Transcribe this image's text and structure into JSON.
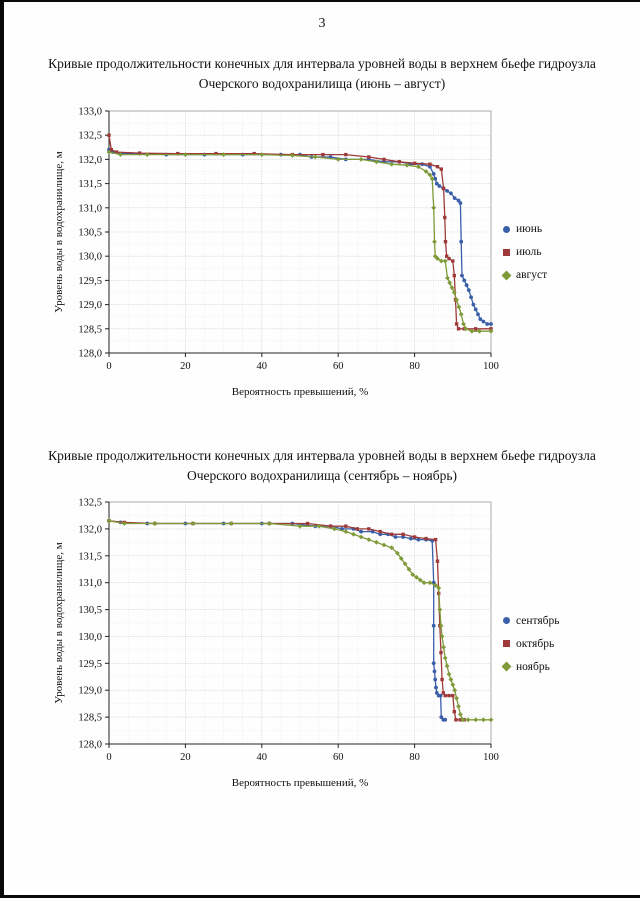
{
  "document": {
    "page_number": "3"
  },
  "chart_data": [
    {
      "type": "line",
      "title": "Кривые продолжительности конечных для интервала уровней воды в верхнем бьефе гидроузла Очерского водохранилища (июнь – август)",
      "xlabel": "Вероятность превышений, %",
      "ylabel": "Уровень воды в водохранилище, м",
      "xlim": [
        0,
        100
      ],
      "ylim": [
        128.0,
        133.0
      ],
      "xticks": [
        0,
        20,
        40,
        60,
        80,
        100
      ],
      "ytick_step": 0.5,
      "grid": true,
      "legend_position": "right",
      "series": [
        {
          "name": "июнь",
          "color": "#3a5fa8",
          "marker": "circle",
          "points": [
            [
              0,
              132.2
            ],
            [
              1,
              132.15
            ],
            [
              3,
              132.12
            ],
            [
              8,
              132.12
            ],
            [
              15,
              132.1
            ],
            [
              25,
              132.1
            ],
            [
              35,
              132.1
            ],
            [
              45,
              132.1
            ],
            [
              50,
              132.1
            ],
            [
              53,
              132.05
            ],
            [
              58,
              132.05
            ],
            [
              62,
              132.0
            ],
            [
              68,
              132.0
            ],
            [
              72,
              131.95
            ],
            [
              76,
              131.95
            ],
            [
              79,
              131.9
            ],
            [
              82,
              131.9
            ],
            [
              84,
              131.85
            ],
            [
              85,
              131.7
            ],
            [
              85.4,
              131.6
            ],
            [
              85.8,
              131.5
            ],
            [
              86.5,
              131.45
            ],
            [
              87.5,
              131.4
            ],
            [
              88.5,
              131.35
            ],
            [
              89.5,
              131.3
            ],
            [
              90.5,
              131.2
            ],
            [
              91.5,
              131.15
            ],
            [
              92,
              131.1
            ],
            [
              92.2,
              130.3
            ],
            [
              92.4,
              129.6
            ],
            [
              93,
              129.5
            ],
            [
              93.6,
              129.4
            ],
            [
              94.2,
              129.3
            ],
            [
              94.8,
              129.15
            ],
            [
              95.4,
              129.0
            ],
            [
              96,
              128.9
            ],
            [
              96.6,
              128.8
            ],
            [
              97.2,
              128.7
            ],
            [
              98,
              128.65
            ],
            [
              99,
              128.6
            ],
            [
              100,
              128.6
            ]
          ]
        },
        {
          "name": "июль",
          "color": "#9e3a3a",
          "marker": "square",
          "points": [
            [
              0,
              132.5
            ],
            [
              0.6,
              132.2
            ],
            [
              2,
              132.15
            ],
            [
              8,
              132.13
            ],
            [
              18,
              132.12
            ],
            [
              28,
              132.12
            ],
            [
              38,
              132.12
            ],
            [
              48,
              132.1
            ],
            [
              56,
              132.1
            ],
            [
              62,
              132.1
            ],
            [
              68,
              132.05
            ],
            [
              72,
              132.0
            ],
            [
              76,
              131.95
            ],
            [
              80,
              131.92
            ],
            [
              84,
              131.9
            ],
            [
              86,
              131.85
            ],
            [
              87,
              131.8
            ],
            [
              87.6,
              131.4
            ],
            [
              87.9,
              130.8
            ],
            [
              88.1,
              130.3
            ],
            [
              88.4,
              130.0
            ],
            [
              89,
              129.95
            ],
            [
              90,
              129.9
            ],
            [
              90.4,
              129.6
            ],
            [
              90.7,
              129.1
            ],
            [
              91,
              128.6
            ],
            [
              91.5,
              128.5
            ],
            [
              93,
              128.5
            ],
            [
              96,
              128.5
            ],
            [
              100,
              128.5
            ]
          ]
        },
        {
          "name": "август",
          "color": "#7f9a38",
          "marker": "diamond",
          "points": [
            [
              0,
              132.15
            ],
            [
              3,
              132.1
            ],
            [
              10,
              132.1
            ],
            [
              20,
              132.1
            ],
            [
              30,
              132.1
            ],
            [
              40,
              132.1
            ],
            [
              48,
              132.08
            ],
            [
              54,
              132.05
            ],
            [
              60,
              132.0
            ],
            [
              66,
              132.0
            ],
            [
              70,
              131.95
            ],
            [
              74,
              131.9
            ],
            [
              78,
              131.88
            ],
            [
              81,
              131.85
            ],
            [
              83,
              131.75
            ],
            [
              84,
              131.68
            ],
            [
              84.6,
              131.6
            ],
            [
              85,
              131.0
            ],
            [
              85.2,
              130.3
            ],
            [
              85.4,
              130.0
            ],
            [
              86,
              129.95
            ],
            [
              87,
              129.9
            ],
            [
              88,
              129.9
            ],
            [
              88.6,
              129.55
            ],
            [
              89.2,
              129.45
            ],
            [
              89.8,
              129.35
            ],
            [
              90.4,
              129.25
            ],
            [
              91,
              129.1
            ],
            [
              91.6,
              128.95
            ],
            [
              92.2,
              128.8
            ],
            [
              92.8,
              128.6
            ],
            [
              93.4,
              128.5
            ],
            [
              95,
              128.45
            ],
            [
              97,
              128.45
            ],
            [
              100,
              128.45
            ]
          ]
        }
      ]
    },
    {
      "type": "line",
      "title": "Кривые продолжительности конечных для интервала уровней воды в верхнем бьефе гидроузла Очерского водохранилища (сентябрь – ноябрь)",
      "xlabel": "Вероятность превышений, %",
      "ylabel": "Уровень воды в водохранилище, м",
      "xlim": [
        0,
        100
      ],
      "ylim": [
        128.0,
        132.5
      ],
      "xticks": [
        0,
        20,
        40,
        60,
        80,
        100
      ],
      "ytick_step": 0.5,
      "grid": true,
      "legend_position": "right",
      "series": [
        {
          "name": "сентябрь",
          "color": "#3a5fa8",
          "marker": "circle",
          "points": [
            [
              0,
              132.15
            ],
            [
              3,
              132.12
            ],
            [
              10,
              132.1
            ],
            [
              20,
              132.1
            ],
            [
              30,
              132.1
            ],
            [
              40,
              132.1
            ],
            [
              48,
              132.1
            ],
            [
              54,
              132.05
            ],
            [
              58,
              132.05
            ],
            [
              61,
              132.0
            ],
            [
              64,
              132.0
            ],
            [
              66,
              131.95
            ],
            [
              69,
              131.95
            ],
            [
              71,
              131.9
            ],
            [
              73,
              131.9
            ],
            [
              75,
              131.85
            ],
            [
              77,
              131.85
            ],
            [
              79,
              131.82
            ],
            [
              81,
              131.8
            ],
            [
              83,
              131.8
            ],
            [
              84.6,
              131.78
            ],
            [
              85,
              131.0
            ],
            [
              85,
              130.2
            ],
            [
              85,
              129.5
            ],
            [
              85.2,
              129.35
            ],
            [
              85.4,
              129.2
            ],
            [
              85.6,
              129.05
            ],
            [
              85.8,
              128.95
            ],
            [
              86.3,
              128.9
            ],
            [
              86.8,
              128.9
            ],
            [
              87,
              128.5
            ],
            [
              87.5,
              128.45
            ],
            [
              88,
              128.45
            ]
          ]
        },
        {
          "name": "октябрь",
          "color": "#9e3a3a",
          "marker": "square",
          "points": [
            [
              0,
              132.15
            ],
            [
              4,
              132.12
            ],
            [
              12,
              132.1
            ],
            [
              22,
              132.1
            ],
            [
              32,
              132.1
            ],
            [
              42,
              132.1
            ],
            [
              52,
              132.1
            ],
            [
              58,
              132.05
            ],
            [
              62,
              132.05
            ],
            [
              65,
              132.0
            ],
            [
              68,
              132.0
            ],
            [
              71,
              131.95
            ],
            [
              74,
              131.9
            ],
            [
              77,
              131.9
            ],
            [
              80,
              131.85
            ],
            [
              83,
              131.82
            ],
            [
              85.5,
              131.8
            ],
            [
              86,
              131.4
            ],
            [
              86.3,
              130.8
            ],
            [
              86.6,
              130.2
            ],
            [
              86.9,
              129.7
            ],
            [
              87.2,
              129.2
            ],
            [
              87.5,
              128.95
            ],
            [
              88,
              128.9
            ],
            [
              89,
              128.9
            ],
            [
              90,
              128.9
            ],
            [
              90.4,
              128.6
            ],
            [
              90.8,
              128.45
            ],
            [
              92,
              128.45
            ],
            [
              93,
              128.45
            ]
          ]
        },
        {
          "name": "ноябрь",
          "color": "#7f9a38",
          "marker": "diamond",
          "points": [
            [
              0,
              132.15
            ],
            [
              4,
              132.1
            ],
            [
              12,
              132.1
            ],
            [
              22,
              132.1
            ],
            [
              32,
              132.1
            ],
            [
              42,
              132.1
            ],
            [
              50,
              132.05
            ],
            [
              55,
              132.05
            ],
            [
              59,
              132.0
            ],
            [
              62,
              131.95
            ],
            [
              64,
              131.9
            ],
            [
              66,
              131.85
            ],
            [
              68,
              131.8
            ],
            [
              70,
              131.75
            ],
            [
              72,
              131.7
            ],
            [
              74,
              131.65
            ],
            [
              75.5,
              131.55
            ],
            [
              76.5,
              131.45
            ],
            [
              77.5,
              131.35
            ],
            [
              78.5,
              131.25
            ],
            [
              79.5,
              131.15
            ],
            [
              80.5,
              131.1
            ],
            [
              81.5,
              131.05
            ],
            [
              82.5,
              131.0
            ],
            [
              84,
              131.0
            ],
            [
              85.5,
              130.95
            ],
            [
              86.3,
              130.9
            ],
            [
              86.6,
              130.5
            ],
            [
              86.9,
              130.2
            ],
            [
              87.2,
              130.0
            ],
            [
              87.6,
              129.8
            ],
            [
              88,
              129.6
            ],
            [
              88.5,
              129.45
            ],
            [
              89,
              129.3
            ],
            [
              89.5,
              129.2
            ],
            [
              90,
              129.1
            ],
            [
              90.5,
              129.0
            ],
            [
              91,
              128.85
            ],
            [
              91.5,
              128.7
            ],
            [
              92,
              128.55
            ],
            [
              92.6,
              128.45
            ],
            [
              94,
              128.45
            ],
            [
              96,
              128.45
            ],
            [
              98,
              128.45
            ],
            [
              100,
              128.45
            ]
          ]
        }
      ]
    }
  ]
}
